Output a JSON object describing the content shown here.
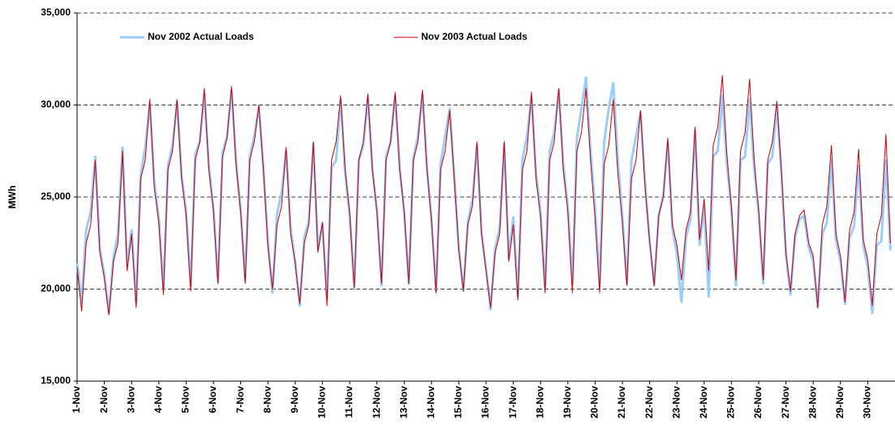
{
  "chart_data": {
    "type": "line",
    "y_label": "MWh",
    "ylim": [
      15000,
      35000
    ],
    "yticks": [
      {
        "value": 15000,
        "label": "15,000"
      },
      {
        "value": 20000,
        "label": "20,000"
      },
      {
        "value": 25000,
        "label": "25,000"
      },
      {
        "value": 30000,
        "label": "30,000"
      },
      {
        "value": 35000,
        "label": "35,000"
      }
    ],
    "grid": true,
    "legend": "top",
    "categories": [
      "1-Nov",
      null,
      null,
      null,
      null,
      null,
      "2-Nov",
      null,
      null,
      null,
      null,
      null,
      "3-Nov",
      null,
      null,
      null,
      null,
      null,
      "4-Nov",
      null,
      null,
      null,
      null,
      null,
      "5-Nov",
      null,
      null,
      null,
      null,
      null,
      "6-Nov",
      null,
      null,
      null,
      null,
      null,
      "7-Nov",
      null,
      null,
      null,
      null,
      null,
      "8-Nov",
      null,
      null,
      null,
      null,
      null,
      "9-Nov",
      null,
      null,
      null,
      null,
      null,
      "10-Nov",
      null,
      null,
      null,
      null,
      null,
      "11-Nov",
      null,
      null,
      null,
      null,
      null,
      "12-Nov",
      null,
      null,
      null,
      null,
      null,
      "13-Nov",
      null,
      null,
      null,
      null,
      null,
      "14-Nov",
      null,
      null,
      null,
      null,
      null,
      "15-Nov",
      null,
      null,
      null,
      null,
      null,
      "16-Nov",
      null,
      null,
      null,
      null,
      null,
      "17-Nov",
      null,
      null,
      null,
      null,
      null,
      "18-Nov",
      null,
      null,
      null,
      null,
      null,
      "19-Nov",
      null,
      null,
      null,
      null,
      null,
      "20-Nov",
      null,
      null,
      null,
      null,
      null,
      "21-Nov",
      null,
      null,
      null,
      null,
      null,
      "22-Nov",
      null,
      null,
      null,
      null,
      null,
      "23-Nov",
      null,
      null,
      null,
      null,
      null,
      "24-Nov",
      null,
      null,
      null,
      null,
      null,
      "25-Nov",
      null,
      null,
      null,
      null,
      null,
      "26-Nov",
      null,
      null,
      null,
      null,
      null,
      "27-Nov",
      null,
      null,
      null,
      null,
      null,
      "28-Nov",
      null,
      null,
      null,
      null,
      null,
      "29-Nov",
      null,
      null,
      null,
      null,
      null,
      "30-Nov",
      null,
      null,
      null,
      null,
      null
    ],
    "series": [
      {
        "name": "Nov 2002 Actual Loads",
        "color": "#99ccff",
        "width": 3,
        "values": [
          21400,
          19300,
          23200,
          24200,
          27200,
          22200,
          20800,
          18700,
          21700,
          23000,
          27700,
          21300,
          23200,
          19300,
          26200,
          27700,
          30100,
          25800,
          23800,
          20000,
          26700,
          27800,
          30200,
          26200,
          24200,
          20200,
          27300,
          28000,
          30600,
          26700,
          24400,
          20400,
          27400,
          28300,
          30800,
          26900,
          24300,
          20500,
          27200,
          28300,
          29900,
          26600,
          22600,
          19800,
          24100,
          25200,
          27500,
          23300,
          21500,
          19100,
          22800,
          23700,
          27900,
          22200,
          23600,
          19500,
          26600,
          27000,
          30300,
          26300,
          24000,
          20000,
          27000,
          27800,
          30400,
          26400,
          24200,
          20200,
          27200,
          28000,
          30500,
          26600,
          24100,
          20300,
          27100,
          28300,
          30600,
          26600,
          23800,
          19900,
          26800,
          28300,
          29800,
          26200,
          22200,
          19900,
          23700,
          24800,
          27800,
          23100,
          21100,
          18900,
          22200,
          23300,
          27900,
          21700,
          23900,
          19600,
          27000,
          28300,
          30400,
          26300,
          24200,
          20000,
          27500,
          28500,
          30800,
          26700,
          24500,
          20300,
          28200,
          29800,
          31500,
          27500,
          24400,
          20300,
          28000,
          29800,
          31200,
          27000,
          24000,
          20300,
          27000,
          28300,
          29600,
          25800,
          22600,
          20200,
          24000,
          25100,
          28000,
          23300,
          21900,
          19300,
          22800,
          23800,
          28600,
          22400,
          24500,
          19600,
          27200,
          27500,
          30500,
          26800,
          24300,
          20200,
          27000,
          27200,
          30300,
          26600,
          24100,
          20300,
          26800,
          27200,
          30000,
          26200,
          21800,
          19700,
          22800,
          23800,
          24000,
          22300,
          21500,
          19000,
          23000,
          23600,
          27000,
          22700,
          21500,
          19200,
          22800,
          23400,
          26700,
          22400,
          21200,
          18700,
          22400,
          22600,
          27000,
          22100
        ]
      },
      {
        "name": "Nov 2003 Actual Loads",
        "color": "#cc0000",
        "width": 1,
        "values": [
          21200,
          18800,
          22500,
          23500,
          27000,
          22000,
          20600,
          18600,
          21500,
          22500,
          27500,
          21000,
          23000,
          19000,
          26000,
          27000,
          30300,
          25500,
          23600,
          19700,
          26500,
          27500,
          30300,
          26000,
          24000,
          19900,
          27000,
          28000,
          30900,
          26500,
          24300,
          20300,
          27200,
          28200,
          31000,
          26700,
          24200,
          20300,
          27000,
          28000,
          30000,
          26500,
          22300,
          20000,
          23500,
          24500,
          27700,
          23000,
          21400,
          19200,
          22500,
          23500,
          28000,
          22000,
          23600,
          19100,
          27000,
          28000,
          30500,
          26500,
          24100,
          20100,
          27000,
          28000,
          30600,
          26500,
          24200,
          20300,
          27000,
          28000,
          30700,
          26500,
          24200,
          20300,
          27000,
          28000,
          30800,
          26500,
          23700,
          19800,
          26500,
          27500,
          29700,
          26000,
          22200,
          19900,
          23500,
          24500,
          28000,
          23000,
          21000,
          19000,
          22000,
          23000,
          28000,
          21500,
          23500,
          19400,
          26500,
          27500,
          30700,
          26000,
          23900,
          19800,
          27000,
          28000,
          30900,
          26500,
          24200,
          19800,
          27500,
          28500,
          30900,
          27000,
          23800,
          19800,
          26800,
          27800,
          30300,
          26300,
          23600,
          20200,
          26000,
          27000,
          29700,
          25500,
          22600,
          20200,
          24000,
          25000,
          28200,
          23500,
          22400,
          20500,
          23200,
          24200,
          28800,
          22700,
          24900,
          21000,
          27800,
          28800,
          31600,
          27300,
          24500,
          20500,
          27500,
          28500,
          31400,
          27000,
          24300,
          20500,
          27000,
          28000,
          30200,
          26500,
          22000,
          19900,
          23000,
          24000,
          24300,
          22500,
          21800,
          19000,
          23500,
          24500,
          27800,
          23000,
          21800,
          19300,
          23200,
          24200,
          27600,
          22700,
          21600,
          19100,
          23000,
          24000,
          28400,
          22500
        ]
      }
    ]
  }
}
